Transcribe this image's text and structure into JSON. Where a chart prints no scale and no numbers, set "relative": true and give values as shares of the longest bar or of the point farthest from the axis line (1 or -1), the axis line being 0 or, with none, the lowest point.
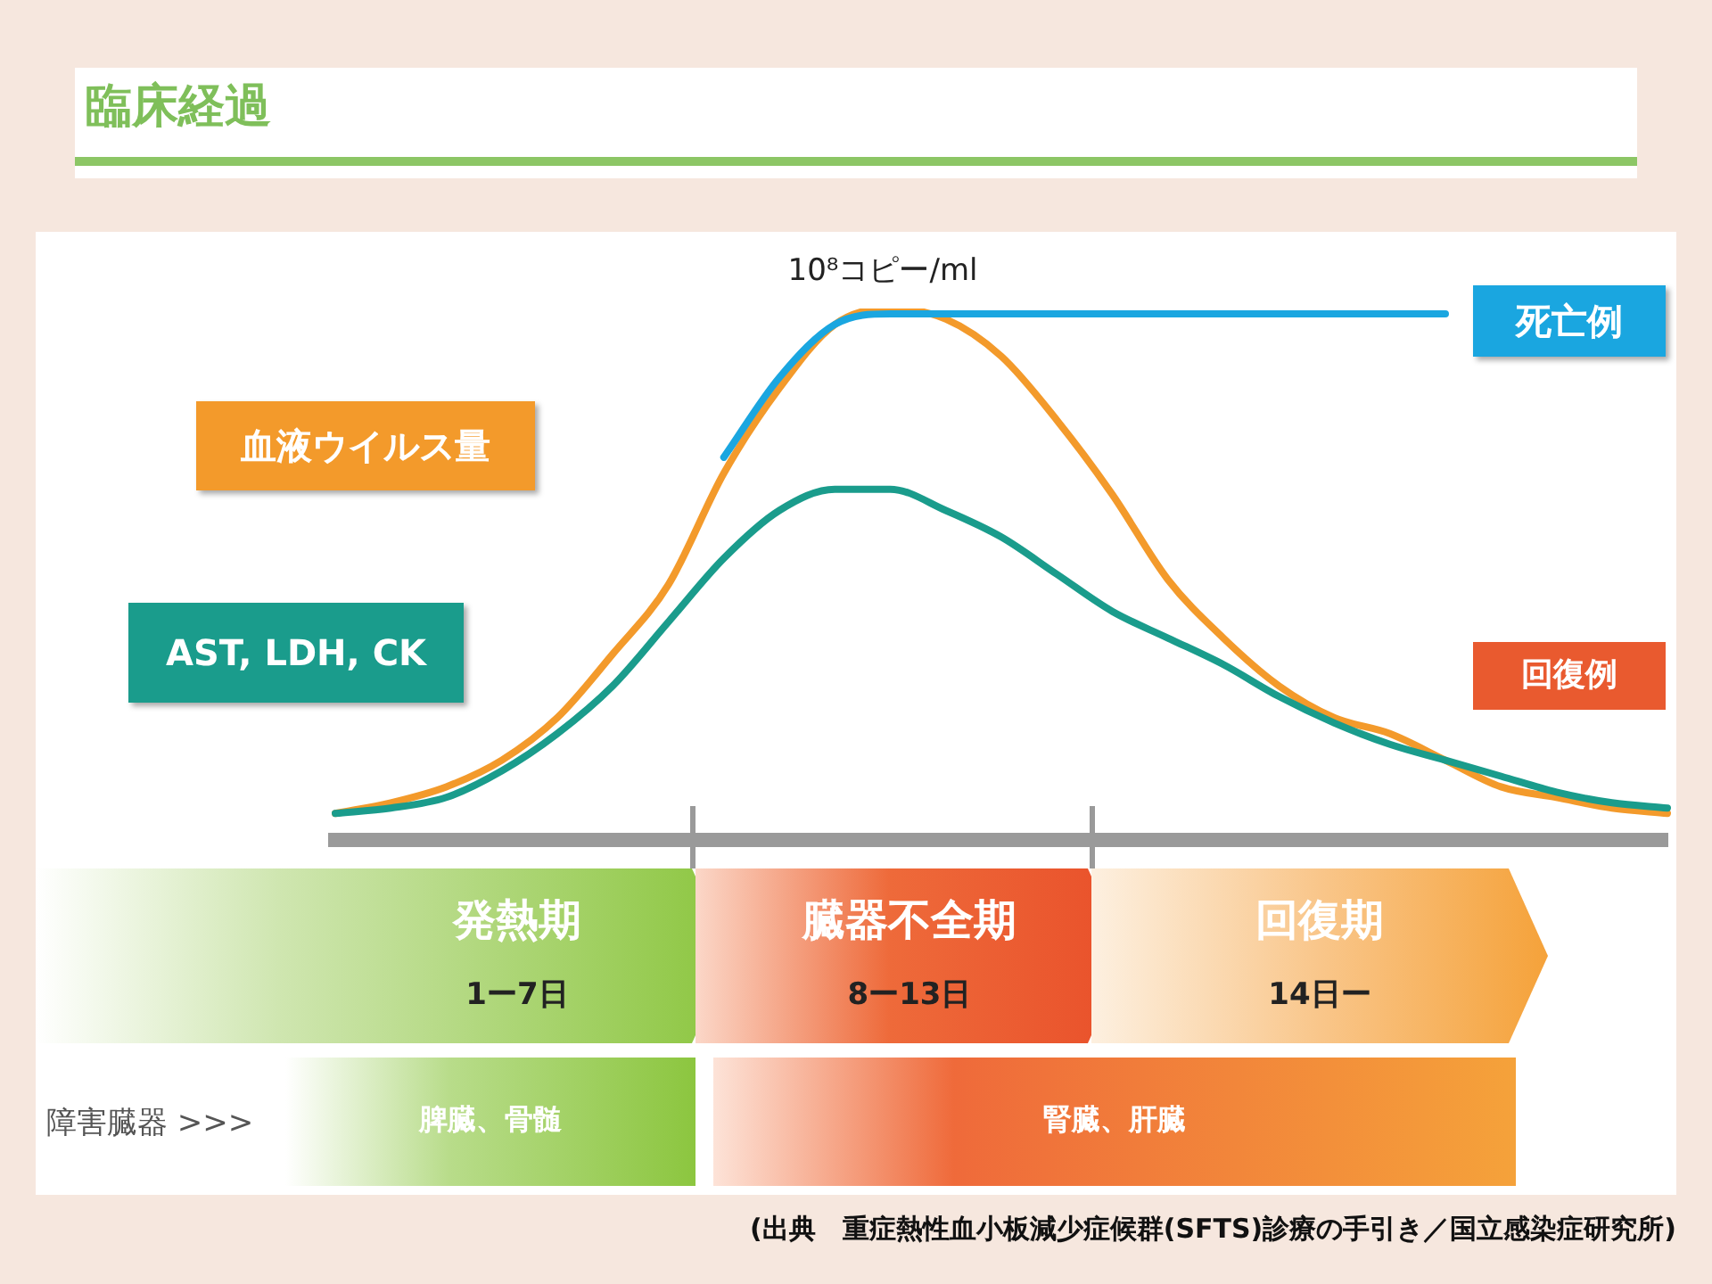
{
  "chart_data": {
    "type": "line",
    "title": "臨床経過",
    "relative": true,
    "categories": [
      null,
      null,
      null,
      null,
      null,
      null,
      null,
      null,
      null,
      null,
      null,
      null,
      null,
      null,
      null,
      null,
      null,
      null,
      null,
      null,
      null,
      null,
      null,
      null,
      null
    ],
    "series": [
      {
        "name": "血液ウイルス量",
        "color": "#f39a2b",
        "values": [
          0.05,
          0.07,
          0.1,
          0.15,
          0.23,
          0.35,
          0.48,
          0.69,
          0.85,
          0.97,
          1.0,
          0.98,
          0.91,
          0.79,
          0.65,
          0.49,
          0.38,
          0.29,
          0.23,
          0.2,
          0.15,
          0.1,
          0.08,
          0.06,
          0.05
        ]
      },
      {
        "name": "AST, LDH, CK",
        "color": "#1a9c8c",
        "values": [
          0.05,
          0.06,
          0.08,
          0.13,
          0.2,
          0.29,
          0.41,
          0.53,
          0.62,
          0.66,
          0.66,
          0.62,
          0.57,
          0.5,
          0.43,
          0.38,
          0.33,
          0.27,
          0.22,
          0.18,
          0.15,
          0.12,
          0.09,
          0.07,
          0.06
        ]
      },
      {
        "name": "死亡例",
        "color": "#1aa6e0",
        "values": [
          null,
          null,
          null,
          null,
          null,
          null,
          null,
          0.72,
          0.87,
          0.97,
          0.99,
          0.99,
          0.99,
          0.99,
          0.99,
          0.99,
          0.99,
          0.99,
          0.99,
          0.99,
          0.99,
          null,
          null,
          null,
          null
        ]
      }
    ],
    "annotations": [
      "10⁸コピー/ml",
      "回復例",
      "発熱期",
      "1ー7日",
      "臓器不全期",
      "8ー13日",
      "回復期",
      "14日ー",
      "障害臓器 >>>",
      "脾臓、骨髄",
      "腎臓、肝臓",
      "(出典　重症熱性血小板減少症候群(SFTS)診療の手引き／国立感染症研究所)"
    ]
  }
}
